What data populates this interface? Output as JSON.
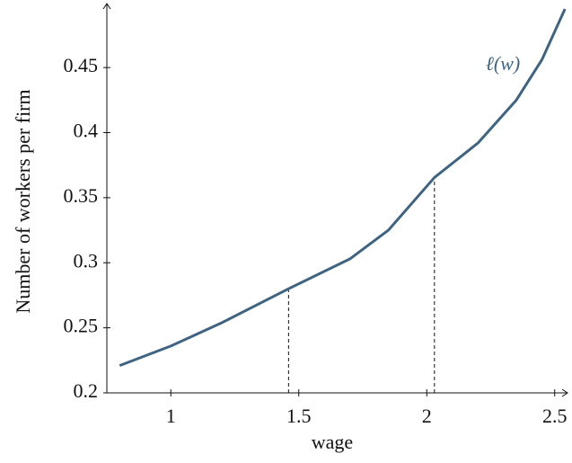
{
  "chart_data": {
    "type": "line",
    "xlabel": "wage",
    "ylabel": "Number of workers per firm",
    "annotation": "ℓ(w)",
    "x": [
      0.8,
      1.0,
      1.2,
      1.46,
      1.7,
      1.85,
      2.03,
      2.2,
      2.35,
      2.45,
      2.54
    ],
    "series": [
      {
        "name": "ℓ(w)",
        "color": "#3e6482",
        "values": [
          0.221,
          0.236,
          0.254,
          0.28,
          0.303,
          0.325,
          0.3655,
          0.392,
          0.425,
          0.456,
          0.495
        ]
      }
    ],
    "vlines": [
      {
        "x": 1.46,
        "y": 0.28
      },
      {
        "x": 2.03,
        "y": 0.3655
      }
    ],
    "xlim": [
      0.75,
      2.55
    ],
    "ylim": [
      0.2,
      0.495
    ],
    "xticks": [
      1,
      1.5,
      2,
      2.5
    ],
    "yticks": [
      0.2,
      0.25,
      0.3,
      0.35,
      0.4,
      0.45
    ],
    "grid": false
  }
}
